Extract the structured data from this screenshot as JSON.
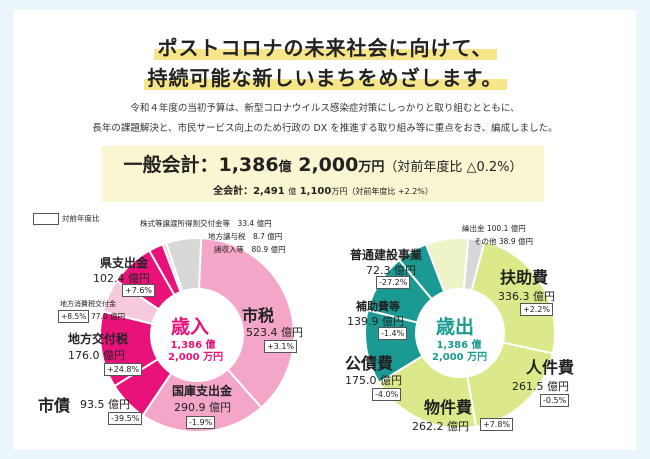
{
  "heading": {
    "line1": "ポストコロナの未来社会に向けて、",
    "line2": "持続可能な新しいまちをめざします。"
  },
  "intro": {
    "line1": "令和４年度の当初予算は、新型コロナウイルス感染症対策にしっかりと取り組むとともに、",
    "line2": "長年の課題解決と、市民サービス向上のため行政の DX を推進する取り組み等に重点をおき、編成しました。"
  },
  "summary": {
    "general_label": "一般会計：",
    "general_oku": "1,386",
    "oku_unit": "億",
    "general_man": "2,000",
    "man_unit": "万円",
    "general_change": "（対前年度比 △0.2%）",
    "total_label": "全会計：",
    "total_oku": "2,491",
    "total_man": "1,100",
    "total_change": "（対前年度比 +2.2%）"
  },
  "legend": {
    "yoy_label": "対前年度比"
  },
  "colors": {
    "revenue_main": "#e8127a",
    "revenue_light": "#f4a6c8",
    "revenue_pale": "#f7c9dd",
    "expend_teal": "#1a9a93",
    "expend_lime": "#dce88a",
    "expend_pale": "#eef3c8",
    "grey": "#d8d8d8",
    "title_highlight": "#f7e58a"
  },
  "chart_data": [
    {
      "type": "pie",
      "title": "歳入",
      "center_sub1": "1,386 億",
      "center_sub2": "2,000 万円",
      "unit": "億円",
      "slices": [
        {
          "name": "市税",
          "value": 523.4,
          "yoy": "+3.1%",
          "value_label": "523.4"
        },
        {
          "name": "国庫支出金",
          "value": 290.9,
          "yoy": "-1.9%",
          "value_label": "290.9 億円"
        },
        {
          "name": "市債",
          "value": 93.5,
          "yoy": "-39.5%",
          "value_label": "93.5 億円"
        },
        {
          "name": "地方交付税",
          "value": 176.0,
          "yoy": "+24.8%",
          "value_label": "176.0 億円"
        },
        {
          "name": "地方消費税交付金",
          "value": 77.0,
          "yoy": "+8.5%",
          "value_label": "77.0 億円"
        },
        {
          "name": "県支出金",
          "value": 102.4,
          "yoy": "+7.6%",
          "value_label": "102.4 億円"
        },
        {
          "name": "株式等譲渡所得割交付金等",
          "value": 33.4,
          "value_label": "33.4 億円"
        },
        {
          "name": "地方譲与税",
          "value": 8.7,
          "value_label": "8.7 億円"
        },
        {
          "name": "諸収入等",
          "value": 80.9,
          "value_label": "80.9 億円"
        }
      ]
    },
    {
      "type": "pie",
      "title": "歳出",
      "center_sub1": "1,386 億",
      "center_sub2": "2,000 万円",
      "unit": "億円",
      "slices": [
        {
          "name": "扶助費",
          "value": 336.3,
          "yoy": "+2.2%",
          "value_label": "336.3"
        },
        {
          "name": "人件費",
          "value": 261.5,
          "yoy": "-0.5%",
          "value_label": "261.5 億円"
        },
        {
          "name": "物件費",
          "value": 262.2,
          "yoy": "+7.8%",
          "value_label": "262.2 億円"
        },
        {
          "name": "公債費",
          "value": 175.0,
          "yoy": "-4.0%",
          "value_label": "175.0 億円"
        },
        {
          "name": "補助費等",
          "value": 139.9,
          "yoy": "-1.4%",
          "value_label": "139.9 億円"
        },
        {
          "name": "普通建設事業",
          "value": 72.3,
          "yoy": "-27.2%",
          "value_label": "72.3 億円"
        },
        {
          "name": "繰出金",
          "value": 100.1,
          "value_label": "100.1 億円"
        },
        {
          "name": "その他",
          "value": 38.9,
          "value_label": "38.9 億円"
        }
      ]
    }
  ]
}
